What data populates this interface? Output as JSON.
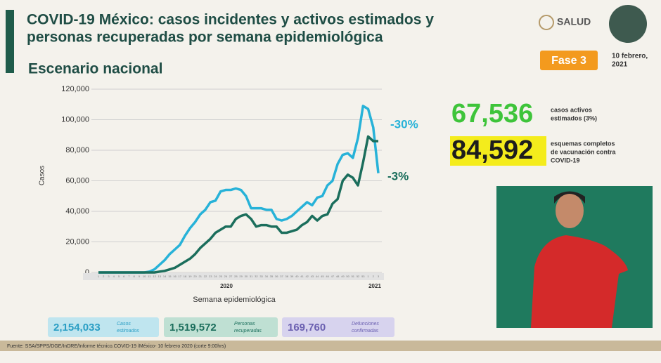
{
  "chart_data": {
    "type": "line",
    "categories": [
      "1",
      "2",
      "3",
      "4",
      "5",
      "6",
      "7",
      "8",
      "9",
      "10",
      "11",
      "12",
      "13",
      "14",
      "15",
      "16",
      "17",
      "18",
      "19",
      "20",
      "21",
      "22",
      "23",
      "24",
      "25",
      "26",
      "27",
      "28",
      "29",
      "30",
      "31",
      "32",
      "33",
      "34",
      "35",
      "36",
      "37",
      "38",
      "39",
      "40",
      "41",
      "42",
      "43",
      "44",
      "45",
      "46",
      "47",
      "48",
      "49",
      "50",
      "51",
      "52",
      "53",
      "1",
      "2",
      "3"
    ],
    "series": [
      {
        "color": "#27b2d8",
        "values": [
          0,
          0,
          0,
          0,
          0,
          0,
          0,
          0,
          0,
          0,
          500,
          2000,
          5000,
          8000,
          12000,
          15000,
          18000,
          24000,
          29000,
          33000,
          38000,
          41000,
          46000,
          47000,
          53000,
          54000,
          54000,
          55000,
          54000,
          50000,
          42000,
          42000,
          42000,
          41000,
          41000,
          35000,
          34000,
          35000,
          37000,
          40000,
          43000,
          46000,
          44000,
          49000,
          50000,
          57000,
          60000,
          71000,
          77000,
          78000,
          75000,
          88000,
          109000,
          107000,
          95000,
          65000
        ]
      },
      {
        "color": "#1b6e5c",
        "values": [
          0,
          0,
          0,
          0,
          0,
          0,
          0,
          0,
          0,
          0,
          0,
          0,
          500,
          1000,
          2000,
          3000,
          5000,
          7000,
          9000,
          12000,
          16000,
          19000,
          22000,
          26000,
          28000,
          30000,
          30000,
          35000,
          37000,
          38000,
          35000,
          30000,
          31000,
          31000,
          30000,
          30000,
          26000,
          26000,
          27000,
          28000,
          31000,
          33000,
          37000,
          34000,
          37000,
          38000,
          45000,
          48000,
          60000,
          64000,
          62000,
          57000,
          72000,
          89000,
          86000,
          86000
        ]
      }
    ],
    "ylim": [
      0,
      120000
    ],
    "yticks": [
      0,
      {
        "value": 20000,
        "label": "20,000"
      },
      {
        "value": 40000,
        "label": "40,000"
      },
      {
        "value": 60000,
        "label": "60,000"
      },
      {
        "value": 80000,
        "label": "80,000"
      },
      {
        "value": 100000,
        "label": "100,000"
      },
      {
        "value": 120000,
        "label": "120,000"
      }
    ],
    "grid": true,
    "ylabel": "Casos",
    "xlabel": "Semana epidemiológica",
    "year_labels": [
      "2020",
      "2021"
    ],
    "annotations": [
      "-30%",
      "-3%"
    ]
  },
  "header": {
    "title": [
      "COVID-19 México: casos incidentes y activos estimados y",
      "personas recuperadas por semana epidemiológica"
    ],
    "subtitle": "Escenario nacional",
    "logo": "SALUD",
    "phase": "Fase 3",
    "date": [
      "10 febrero,",
      "2021"
    ]
  },
  "stats": [
    {
      "value": "67,536",
      "label": [
        "casos activos",
        "estimados (3%)"
      ]
    },
    {
      "value": "84,592",
      "label": [
        "esquemas completos",
        "de vacunación contra",
        "COVID-19"
      ]
    }
  ],
  "totals": [
    {
      "value": "2,154,033",
      "label": [
        "Casos",
        "estimados"
      ]
    },
    {
      "value": "1,519,572",
      "label": [
        "Personas",
        "recuperadas"
      ]
    },
    {
      "value": "169,760",
      "label": [
        "Defunciones",
        "confirmadas"
      ]
    }
  ],
  "footer": "Fuente: SSA/SPPS/DGE/InDRE/Informe técnico.COVID-19 /México- 10 febrero 2020 (corte 9:00hrs)"
}
